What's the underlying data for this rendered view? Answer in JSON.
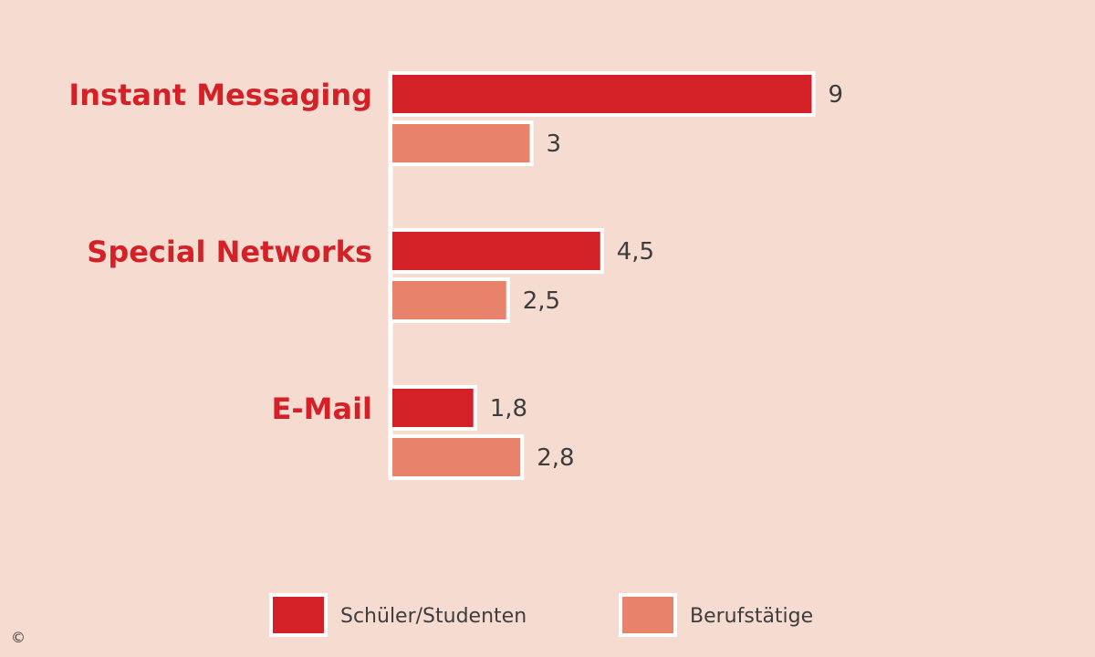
{
  "chart_data": {
    "type": "bar",
    "orientation": "horizontal",
    "categories": [
      "Instant Messaging",
      "Special Networks",
      "E-Mail"
    ],
    "series": [
      {
        "name": "Schüler/Studenten",
        "values": [
          9,
          4.5,
          1.8
        ],
        "labels": [
          "9",
          "4,5",
          "1,8"
        ],
        "color": "#d42027"
      },
      {
        "name": "Berufstätige",
        "values": [
          3,
          2.5,
          2.8
        ],
        "labels": [
          "3",
          "2,5",
          "2,8"
        ],
        "color": "#e8826a"
      }
    ],
    "title": "",
    "xlabel": "",
    "ylabel": "",
    "xlim": [
      0,
      9
    ],
    "grid": false,
    "legend": "bottom",
    "colors": {
      "background": "#f6dcd0",
      "category_text": "#d42027",
      "value_text": "#3d3d3d",
      "bar_border": "#ffffff"
    }
  },
  "footer": {
    "copyright_symbol": "©"
  }
}
